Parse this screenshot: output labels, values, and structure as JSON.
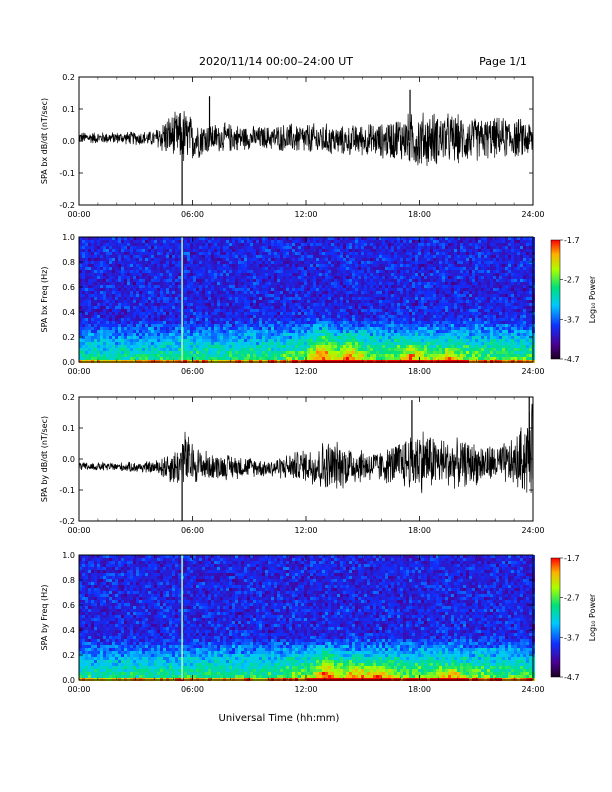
{
  "header": {
    "title": "2020/11/14  00:00–24:00 UT",
    "page": "Page 1/1"
  },
  "footer": {
    "xlabel": "Universal Time (hh:mm)"
  },
  "chart_data": [
    {
      "type": "line",
      "ylabel": "SPA bx dB/dt (nT/sec)",
      "xlim": [
        0,
        24
      ],
      "ylim": [
        -0.2,
        0.2
      ],
      "xticks": [
        "00:00",
        "06:00",
        "12:00",
        "18:00",
        "24:00"
      ],
      "yticks": [
        "0.2",
        "0.1",
        "0.0",
        "-0.1",
        "-0.2"
      ],
      "series": [
        {
          "envelope_hours": [
            0,
            2,
            4,
            4.5,
            5.3,
            5.5,
            6,
            7,
            8,
            9,
            10,
            11,
            12,
            13,
            14,
            15,
            16,
            17,
            18,
            19,
            20,
            21,
            22,
            23,
            24
          ],
          "upper": [
            0.03,
            0.03,
            0.035,
            0.08,
            0.1,
            0.12,
            0.08,
            0.06,
            0.06,
            0.05,
            0.05,
            0.06,
            0.06,
            0.06,
            0.05,
            0.06,
            0.06,
            0.09,
            0.1,
            0.1,
            0.09,
            0.08,
            0.08,
            0.08,
            0.07
          ],
          "lower": [
            -0.01,
            -0.01,
            -0.02,
            -0.05,
            -0.07,
            -0.1,
            -0.07,
            -0.04,
            -0.04,
            -0.03,
            -0.03,
            -0.04,
            -0.05,
            -0.05,
            -0.05,
            -0.05,
            -0.06,
            -0.07,
            -0.1,
            -0.08,
            -0.08,
            -0.07,
            -0.06,
            -0.06,
            -0.06
          ]
        }
      ],
      "spikes": [
        {
          "x": 5.45,
          "y": -0.2
        },
        {
          "x": 6.9,
          "y": 0.14
        },
        {
          "x": 17.5,
          "y": 0.16
        }
      ]
    },
    {
      "type": "heatmap",
      "ylabel": "SPA bx Freq (Hz)",
      "xlim": [
        0,
        24
      ],
      "ylim": [
        0,
        1.0
      ],
      "xticks": [
        "00:00",
        "06:00",
        "12:00",
        "18:00",
        "24:00"
      ],
      "yticks": [
        "1.0",
        "0.8",
        "0.6",
        "0.4",
        "0.2",
        "0.0"
      ],
      "colorbar": {
        "label": "Log₁₀ Power",
        "min": -4.7,
        "max": -1.7,
        "ticks": [
          "-1.7",
          "-2.7",
          "-3.7",
          "-4.7"
        ]
      },
      "features": [
        {
          "x": 5.45,
          "kind": "vertical-line"
        },
        {
          "x": 12.8,
          "fmax": 0.4,
          "kind": "blob"
        },
        {
          "x": 14.2,
          "fmax": 0.3,
          "kind": "blob"
        },
        {
          "x": 17.5,
          "fmax": 0.2,
          "kind": "blob"
        },
        {
          "x": 19.5,
          "fmax": 0.15,
          "kind": "blob"
        }
      ]
    },
    {
      "type": "line",
      "ylabel": "SPA by dB/dt (nT/sec)",
      "xlim": [
        0,
        24
      ],
      "ylim": [
        -0.2,
        0.2
      ],
      "xticks": [
        "00:00",
        "06:00",
        "12:00",
        "18:00",
        "24:00"
      ],
      "yticks": [
        "0.2",
        "0.1",
        "0.0",
        "-0.1",
        "-0.2"
      ],
      "series": [
        {
          "envelope_hours": [
            0,
            2,
            4,
            4.5,
            5.3,
            5.5,
            6,
            7,
            8,
            9,
            10,
            11,
            12,
            13,
            14,
            15,
            16,
            17,
            18,
            19,
            20,
            21,
            22,
            23,
            24
          ],
          "upper": [
            -0.01,
            -0.01,
            -0.005,
            0.02,
            0.05,
            0.12,
            0.06,
            0.02,
            0.02,
            0.01,
            0.0,
            0.02,
            0.04,
            0.07,
            0.06,
            0.04,
            0.03,
            0.07,
            0.12,
            0.08,
            0.07,
            0.06,
            0.05,
            0.07,
            0.2
          ],
          "lower": [
            -0.04,
            -0.04,
            -0.05,
            -0.07,
            -0.1,
            -0.12,
            -0.09,
            -0.07,
            -0.07,
            -0.06,
            -0.06,
            -0.07,
            -0.08,
            -0.12,
            -0.1,
            -0.08,
            -0.08,
            -0.1,
            -0.12,
            -0.1,
            -0.1,
            -0.09,
            -0.08,
            -0.1,
            -0.15
          ]
        }
      ],
      "spikes": [
        {
          "x": 5.45,
          "y": -0.2
        },
        {
          "x": 17.6,
          "y": 0.19
        },
        {
          "x": 23.8,
          "y": 0.2
        }
      ]
    },
    {
      "type": "heatmap",
      "ylabel": "SPA by Freq (Hz)",
      "xlim": [
        0,
        24
      ],
      "ylim": [
        0,
        1.0
      ],
      "xticks": [
        "00:00",
        "06:00",
        "12:00",
        "18:00",
        "24:00"
      ],
      "yticks": [
        "1.0",
        "0.8",
        "0.6",
        "0.4",
        "0.2",
        "0.0"
      ],
      "colorbar": {
        "label": "Log₁₀ Power",
        "min": -4.7,
        "max": -1.7,
        "ticks": [
          "-1.7",
          "-2.7",
          "-3.7",
          "-4.7"
        ]
      },
      "features": [
        {
          "x": 5.45,
          "kind": "vertical-line"
        },
        {
          "x": 13.0,
          "fmax": 0.35,
          "kind": "blob"
        },
        {
          "x": 14.5,
          "fmax": 0.2,
          "kind": "blob"
        },
        {
          "x": 15.8,
          "fmax": 0.2,
          "kind": "blob"
        },
        {
          "x": 19.5,
          "fmax": 0.15,
          "kind": "blob"
        }
      ]
    }
  ]
}
